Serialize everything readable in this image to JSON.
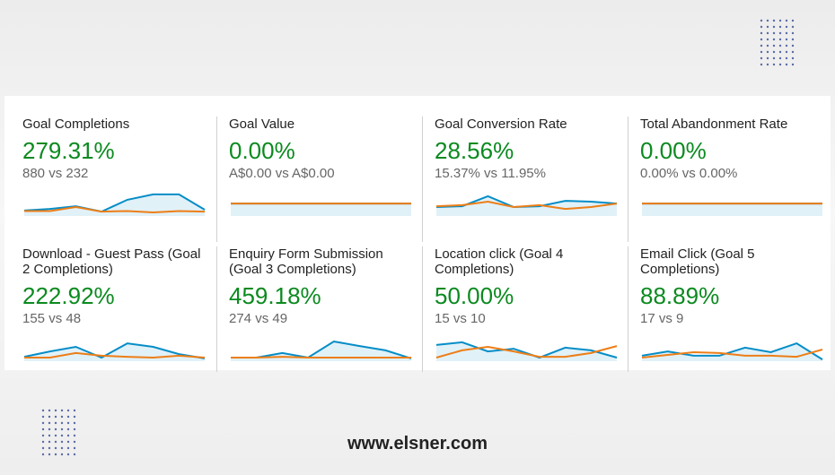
{
  "cards": [
    {
      "title": "Goal Completions",
      "change": "279.31%",
      "comparison": "880 vs 232",
      "spark": {
        "ylim": [
          0,
          10
        ],
        "series": [
          {
            "color": "#058dc7",
            "values": [
              1.7,
              2.3,
              3.3,
              1.3,
              5.7,
              7.7,
              7.7,
              2
            ]
          },
          {
            "color": "#ed7e17",
            "values": [
              1.5,
              1.5,
              3,
              1.3,
              1.5,
              1,
              1.5,
              1.3
            ]
          }
        ]
      }
    },
    {
      "title": "Goal Value",
      "change": "0.00%",
      "comparison": "A$0.00 vs A$0.00",
      "spark": {
        "ylim": [
          0,
          10
        ],
        "series": [
          {
            "color": "#058dc7",
            "values": [
              4.3,
              4.3,
              4.3,
              4.3,
              4.3,
              4.3,
              4.3,
              4.3
            ]
          },
          {
            "color": "#ed7e17",
            "values": [
              4.3,
              4.3,
              4.3,
              4.3,
              4.3,
              4.3,
              4.3,
              4.3
            ]
          }
        ]
      }
    },
    {
      "title": "Goal Conversion Rate",
      "change": "28.56%",
      "comparison": "15.37% vs 11.95%",
      "spark": {
        "ylim": [
          0,
          10
        ],
        "series": [
          {
            "color": "#058dc7",
            "values": [
              3,
              3.3,
              7,
              3,
              3.3,
              5.3,
              5,
              4.3
            ]
          },
          {
            "color": "#ed7e17",
            "values": [
              3.3,
              3.7,
              5,
              3,
              3.7,
              2.3,
              3,
              4.3
            ]
          }
        ]
      }
    },
    {
      "title": "Total Abandonment Rate",
      "change": "0.00%",
      "comparison": "0.00% vs 0.00%",
      "spark": {
        "ylim": [
          0,
          10
        ],
        "series": [
          {
            "color": "#058dc7",
            "values": [
              4.3,
              4.3,
              4.3,
              4.3,
              4.3,
              4.3,
              4.3,
              4.3
            ]
          },
          {
            "color": "#ed7e17",
            "values": [
              4.3,
              4.3,
              4.3,
              4.3,
              4.3,
              4.3,
              4.3,
              4.3
            ]
          }
        ]
      }
    },
    {
      "title": "Download - Guest Pass (Goal 2 Completions)",
      "change": "222.92%",
      "comparison": "155 vs 48",
      "spark": {
        "ylim": [
          0,
          10
        ],
        "series": [
          {
            "color": "#058dc7",
            "values": [
              1.3,
              3.3,
              5,
              1,
              6.3,
              5,
              2.3,
              0.7
            ]
          },
          {
            "color": "#ed7e17",
            "values": [
              1,
              1,
              2.7,
              1.7,
              1.3,
              1,
              1.7,
              1
            ]
          }
        ]
      }
    },
    {
      "title": "Enquiry Form Submission (Goal 3 Completions)",
      "change": "459.18%",
      "comparison": "274 vs 49",
      "spark": {
        "ylim": [
          0,
          10
        ],
        "series": [
          {
            "color": "#058dc7",
            "values": [
              1,
              1,
              2.7,
              1,
              7,
              5.3,
              3.7,
              0.7
            ]
          },
          {
            "color": "#ed7e17",
            "values": [
              1,
              1,
              1.3,
              1,
              1,
              1,
              1,
              1
            ]
          }
        ]
      }
    },
    {
      "title": "Location click (Goal 4 Completions)",
      "change": "50.00%",
      "comparison": "15 vs 10",
      "spark": {
        "ylim": [
          0,
          10
        ],
        "series": [
          {
            "color": "#058dc7",
            "values": [
              5.7,
              6.7,
              3.3,
              4.3,
              1,
              4.7,
              3.7,
              1
            ]
          },
          {
            "color": "#ed7e17",
            "values": [
              1,
              3.7,
              5,
              3.3,
              1.3,
              1.3,
              2.7,
              5.3
            ]
          }
        ]
      }
    },
    {
      "title": "Email Click (Goal 5 Completions)",
      "change": "88.89%",
      "comparison": "17 vs 9",
      "spark": {
        "ylim": [
          0,
          10
        ],
        "series": [
          {
            "color": "#058dc7",
            "values": [
              1.7,
              3.3,
              1.7,
              1.7,
              4.7,
              3,
              6.3,
              0.3
            ]
          },
          {
            "color": "#ed7e17",
            "values": [
              1,
              2,
              3,
              2.7,
              1.7,
              1.7,
              1.3,
              4
            ]
          }
        ]
      }
    }
  ],
  "footer": "www.elsner.com"
}
